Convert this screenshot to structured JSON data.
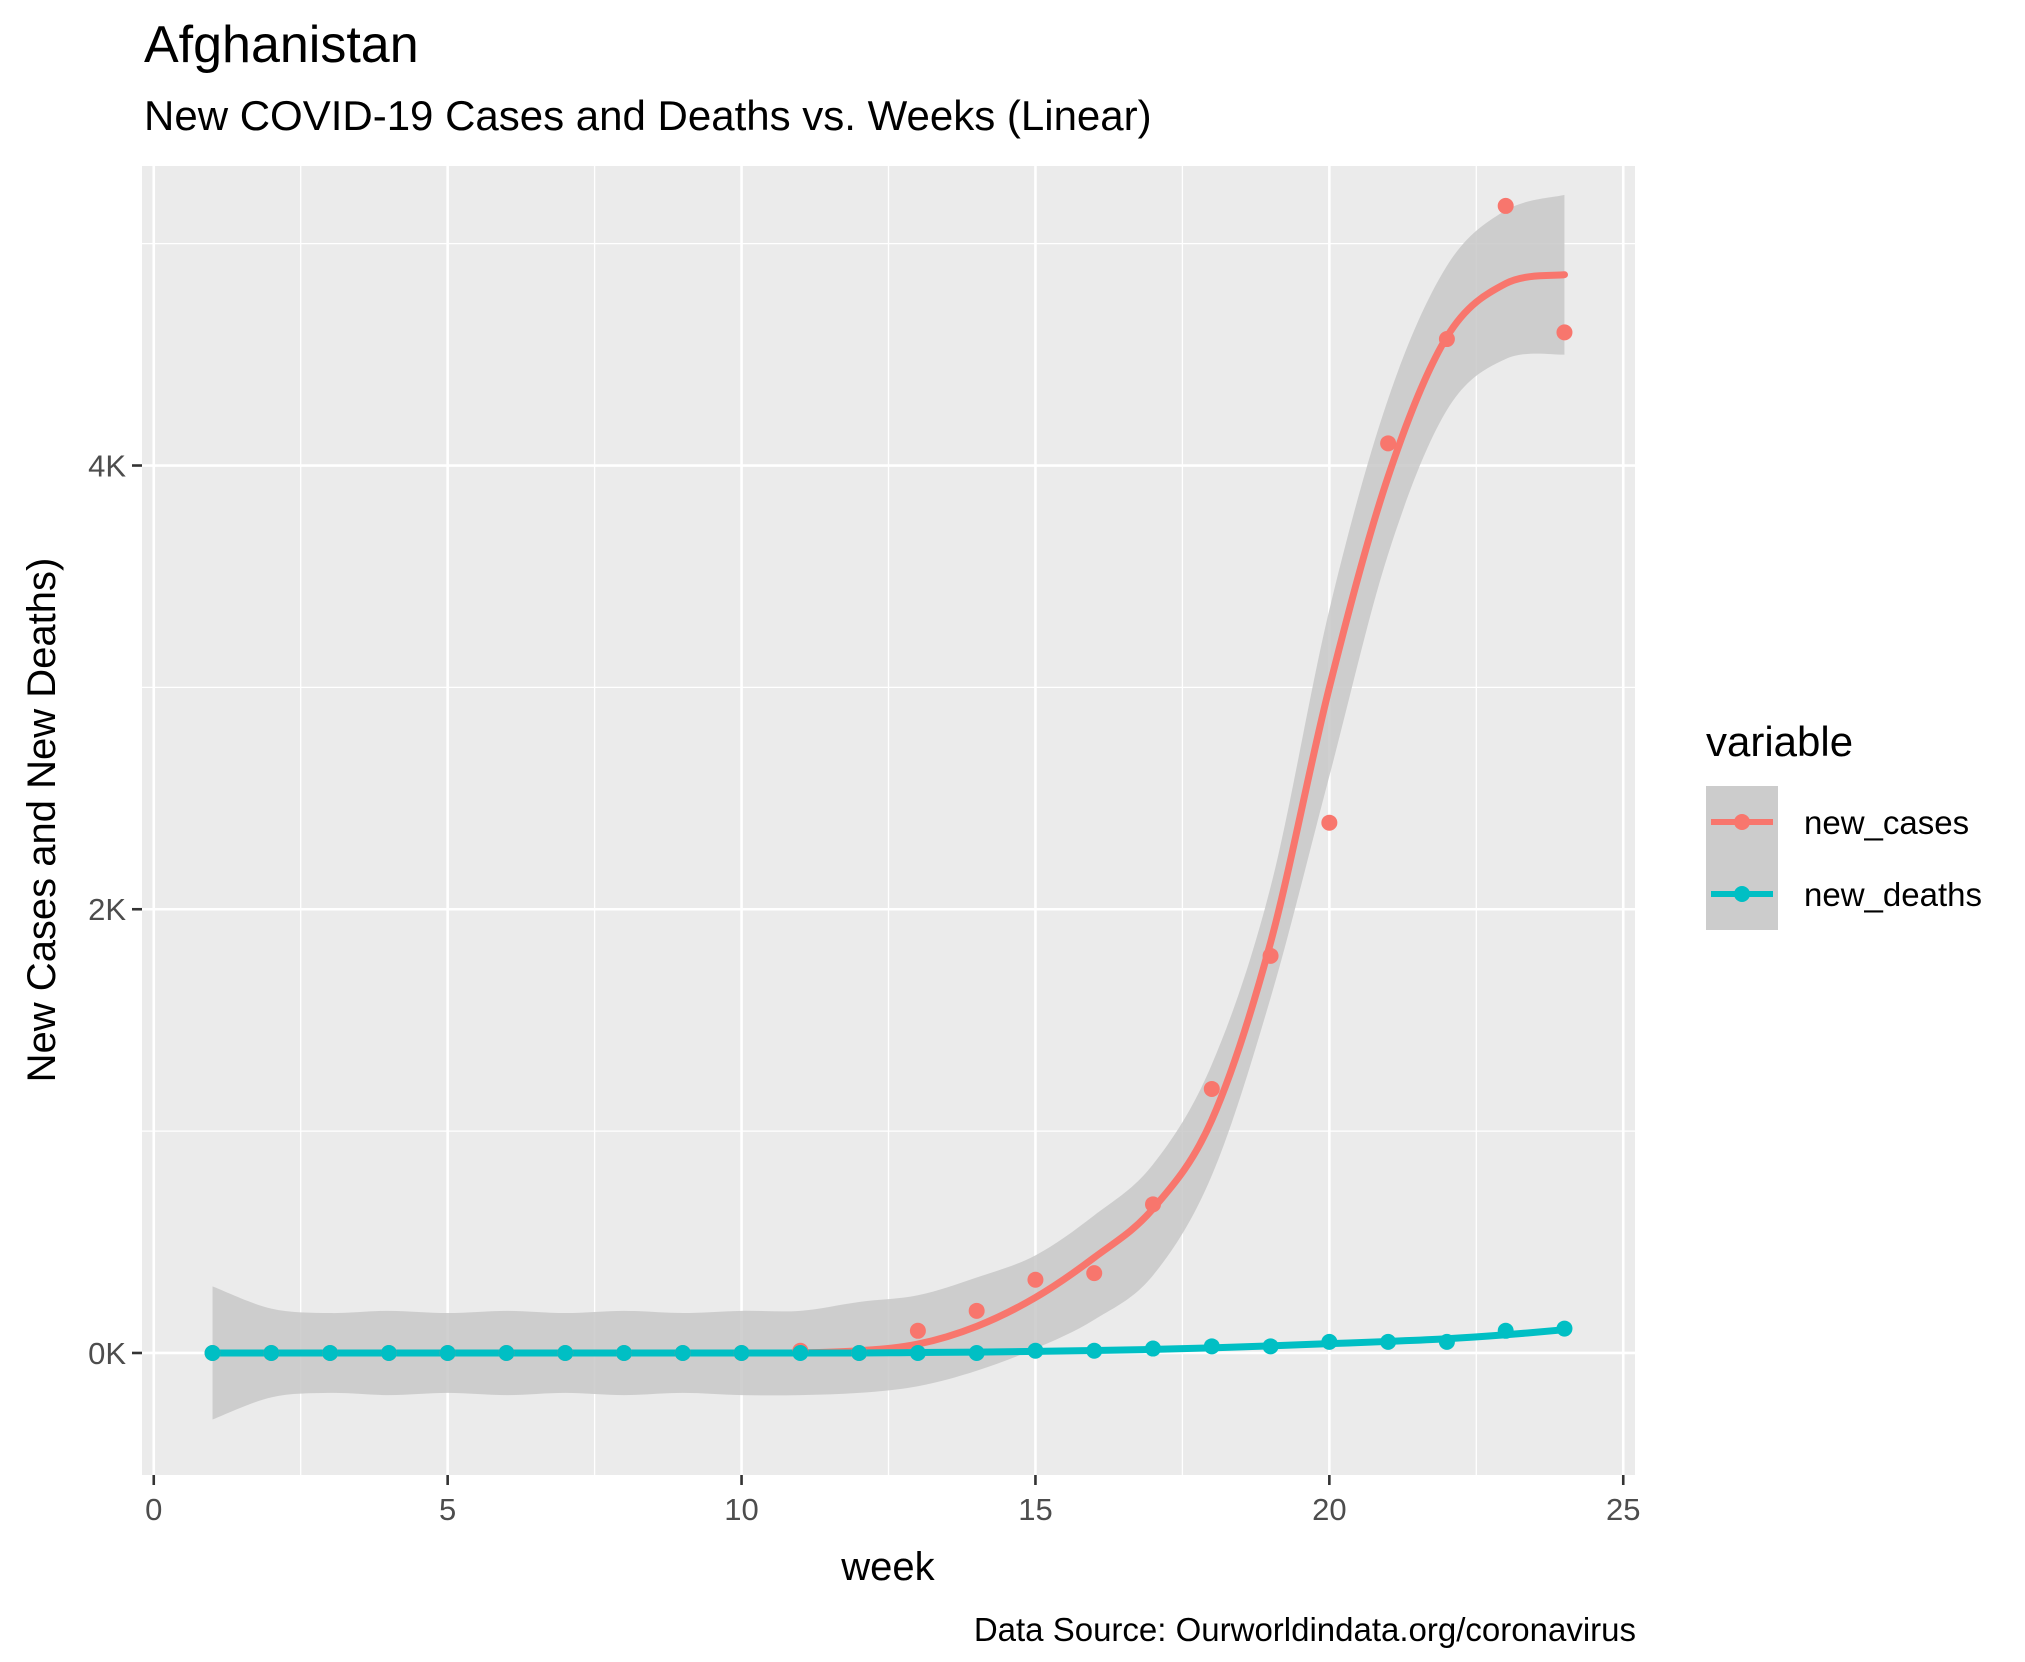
{
  "chart_data": {
    "type": "scatter",
    "title": "Afghanistan",
    "subtitle": "New COVID-19 Cases and Deaths vs. Weeks (Linear)",
    "xlabel": "week",
    "ylabel": "New Cases and New Deaths)",
    "caption": "Data Source: Ourworldindata.org/coronavirus",
    "xlim": [
      -0.2,
      25.2
    ],
    "ylim": [
      -550,
      5350
    ],
    "x_ticks": [
      0,
      5,
      10,
      15,
      20,
      25
    ],
    "x_tick_labels": [
      "0",
      "5",
      "10",
      "15",
      "20",
      "25"
    ],
    "y_ticks": [
      0,
      2000,
      4000
    ],
    "y_tick_labels": [
      "0K",
      "2K",
      "4K"
    ],
    "grid": true,
    "legend": {
      "title": "variable",
      "position": "right"
    },
    "x": [
      1,
      2,
      3,
      4,
      5,
      6,
      7,
      8,
      9,
      10,
      11,
      12,
      13,
      14,
      15,
      16,
      17,
      18,
      19,
      20,
      21,
      22,
      23,
      24
    ],
    "series": [
      {
        "name": "new_cases",
        "color": "#F8766D",
        "values": [
          0,
          0,
          0,
          0,
          0,
          0,
          0,
          0,
          0,
          0,
          10,
          0,
          100,
          190,
          330,
          360,
          670,
          1190,
          1790,
          2390,
          4100,
          4570,
          5170,
          4600
        ],
        "smooth": [
          0,
          0,
          0,
          0,
          0,
          0,
          0,
          0,
          0,
          0,
          0,
          10,
          40,
          120,
          250,
          430,
          650,
          1050,
          1850,
          3000,
          3950,
          4580,
          4820,
          4860
        ],
        "band_lower": [
          -300,
          -200,
          -180,
          -190,
          -180,
          -190,
          -180,
          -190,
          -180,
          -190,
          -190,
          -180,
          -150,
          -80,
          20,
          150,
          350,
          800,
          1600,
          2600,
          3600,
          4250,
          4480,
          4500
        ],
        "band_upper": [
          300,
          200,
          180,
          190,
          180,
          190,
          180,
          190,
          180,
          190,
          190,
          230,
          260,
          340,
          440,
          620,
          850,
          1300,
          2100,
          3350,
          4300,
          4900,
          5150,
          5220
        ]
      },
      {
        "name": "new_deaths",
        "color": "#00BFC4",
        "values": [
          0,
          0,
          0,
          0,
          0,
          0,
          0,
          0,
          0,
          0,
          0,
          0,
          0,
          0,
          10,
          10,
          20,
          30,
          30,
          50,
          50,
          50,
          100,
          110
        ],
        "smooth": [
          0,
          0,
          0,
          0,
          0,
          0,
          0,
          0,
          0,
          0,
          0,
          0,
          2,
          4,
          7,
          11,
          16,
          23,
          32,
          42,
          52,
          64,
          82,
          105
        ]
      }
    ]
  }
}
